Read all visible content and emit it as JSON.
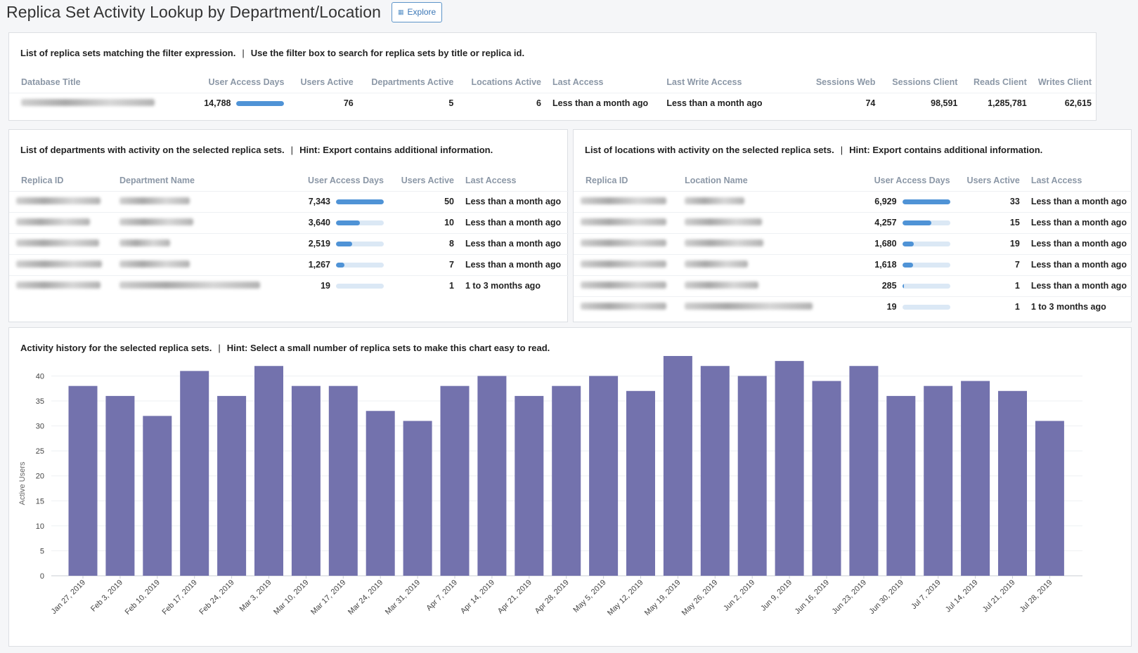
{
  "header": {
    "title": "Replica Set Activity Lookup by Department/Location",
    "explore_label": "Explore"
  },
  "replica_panel": {
    "title": "List of replica sets matching the filter expression.",
    "hint": "Use the filter box to search for replica sets by title or replica id.",
    "columns": [
      "Database Title",
      "User Access Days",
      "Users Active",
      "Departments Active",
      "Locations Active",
      "Last Access",
      "Last Write Access",
      "Sessions Web",
      "Sessions Client",
      "Reads Client",
      "Writes Client"
    ],
    "rows": [
      {
        "user_access_days": "14,788",
        "user_access_days_level": 1.0,
        "users_active": "76",
        "departments_active": "5",
        "locations_active": "6",
        "last_access": "Less than a month ago",
        "last_write_access": "Less than a month ago",
        "sessions_web": "74",
        "sessions_client": "98,591",
        "reads_client": "1,285,781",
        "writes_client": "62,615"
      }
    ]
  },
  "departments_panel": {
    "title": "List of departments with activity on the selected replica sets.",
    "hint": "Hint: Export contains additional information.",
    "columns": [
      "Replica ID",
      "Department Name",
      "User Access Days",
      "Users Active",
      "Last Access"
    ],
    "rows": [
      {
        "user_access_days": "7,343",
        "level": 1.0,
        "users_active": "50",
        "last_access": "Less than a month ago"
      },
      {
        "user_access_days": "3,640",
        "level": 0.5,
        "users_active": "10",
        "last_access": "Less than a month ago"
      },
      {
        "user_access_days": "2,519",
        "level": 0.34,
        "users_active": "8",
        "last_access": "Less than a month ago"
      },
      {
        "user_access_days": "1,267",
        "level": 0.17,
        "users_active": "7",
        "last_access": "Less than a month ago"
      },
      {
        "user_access_days": "19",
        "level": 0.0,
        "users_active": "1",
        "last_access": "1 to 3 months ago"
      }
    ]
  },
  "locations_panel": {
    "title": "List of locations with activity on the selected replica sets.",
    "hint": "Hint: Export contains additional information.",
    "columns": [
      "Replica ID",
      "Location Name",
      "User Access Days",
      "Users Active",
      "Last Access"
    ],
    "rows": [
      {
        "user_access_days": "6,929",
        "level": 1.0,
        "users_active": "33",
        "last_access": "Less than a month ago"
      },
      {
        "user_access_days": "4,257",
        "level": 0.61,
        "users_active": "15",
        "last_access": "Less than a month ago"
      },
      {
        "user_access_days": "1,680",
        "level": 0.24,
        "users_active": "19",
        "last_access": "Less than a month ago"
      },
      {
        "user_access_days": "1,618",
        "level": 0.23,
        "users_active": "7",
        "last_access": "Less than a month ago"
      },
      {
        "user_access_days": "285",
        "level": 0.04,
        "users_active": "1",
        "last_access": "Less than a month ago"
      },
      {
        "user_access_days": "19",
        "level": 0.0,
        "users_active": "1",
        "last_access": "1 to 3 months ago"
      }
    ]
  },
  "chart_panel": {
    "title": "Activity history for the selected replica sets.",
    "hint": "Hint: Select a small number of replica sets to make this chart easy to read."
  },
  "chart_data": {
    "type": "bar",
    "ylabel": "Active Users",
    "xlabel": "",
    "ylim": [
      0,
      44
    ],
    "yticks": [
      0,
      5,
      10,
      15,
      20,
      25,
      30,
      35,
      40
    ],
    "grid": true,
    "bar_color": "#7372ad",
    "categories": [
      "Jan 27, 2019",
      "Feb 3, 2019",
      "Feb 10, 2019",
      "Feb 17, 2019",
      "Feb 24, 2019",
      "Mar 3, 2019",
      "Mar 10, 2019",
      "Mar 17, 2019",
      "Mar 24, 2019",
      "Mar 31, 2019",
      "Apr 7, 2019",
      "Apr 14, 2019",
      "Apr 21, 2019",
      "Apr 28, 2019",
      "May 5, 2019",
      "May 12, 2019",
      "May 19, 2019",
      "May 26, 2019",
      "Jun 2, 2019",
      "Jun 9, 2019",
      "Jun 16, 2019",
      "Jun 23, 2019",
      "Jun 30, 2019",
      "Jul 7, 2019",
      "Jul 14, 2019",
      "Jul 21, 2019",
      "Jul 28, 2019"
    ],
    "values": [
      38,
      36,
      32,
      41,
      36,
      42,
      38,
      38,
      33,
      31,
      38,
      40,
      36,
      38,
      40,
      37,
      44,
      42,
      40,
      43,
      39,
      42,
      36,
      38,
      39,
      37,
      31
    ]
  }
}
